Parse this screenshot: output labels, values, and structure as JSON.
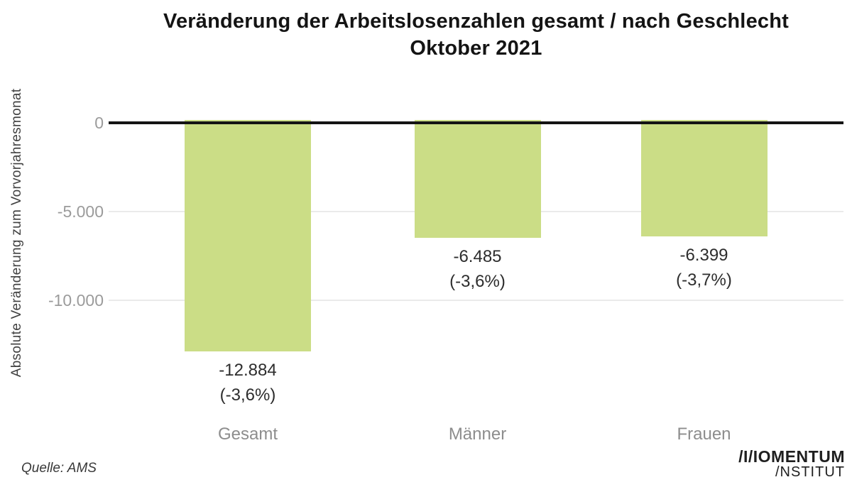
{
  "title": {
    "line1": "Veränderung der Arbeitslosenzahlen gesamt / nach Geschlecht",
    "line2": "Oktober 2021"
  },
  "y_axis": {
    "label": "Absolute Veränderung zum Vorvorjahresmonat",
    "tick_labels": [
      "0",
      "-5.000",
      "-10.000"
    ]
  },
  "source": "Quelle: AMS",
  "logo": {
    "line1": "/I/IOMENTUM",
    "line2": "/NSTITUT"
  },
  "colors": {
    "bar": "#cbdd86",
    "gridline": "#eaeaea",
    "zero_line": "#141414",
    "tick_text": "#9b9b9b",
    "category_text": "#8d8d8d",
    "value_text": "#2d2d2d"
  },
  "chart_data": {
    "type": "bar",
    "title": "Veränderung der Arbeitslosenzahlen gesamt / nach Geschlecht Oktober 2021",
    "categories": [
      "Gesamt",
      "Männer",
      "Frauen"
    ],
    "values": [
      -12884,
      -6485,
      -6399
    ],
    "value_labels": [
      [
        "-12.884",
        "(-3,6%)"
      ],
      [
        "-6.485",
        "(-3,6%)"
      ],
      [
        "-6.399",
        "(-3,7%)"
      ]
    ],
    "xlabel": "",
    "ylabel": "Absolute Veränderung zum Vorvorjahresmonat",
    "ylim": [
      -14000,
      0
    ],
    "yticks": [
      0,
      -5000,
      -10000
    ],
    "grid": "horizontal",
    "legend": "none",
    "source": "Quelle: AMS"
  }
}
